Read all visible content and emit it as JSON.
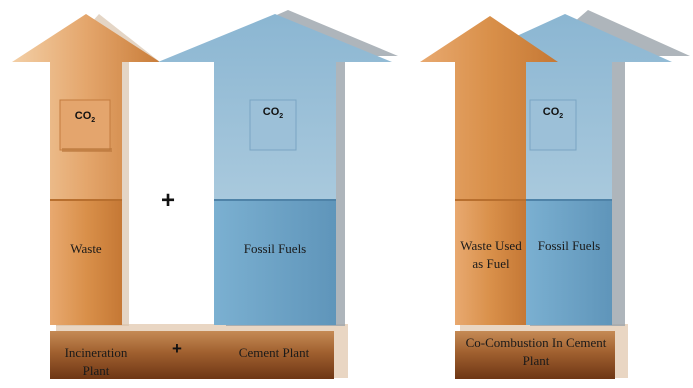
{
  "left_diagram": {
    "waste_label": "Waste",
    "fossil_label": "Fossil Fuels",
    "co2_main": "CO",
    "co2_sub": "2",
    "plus_between": "+",
    "base_left_label": "Incineration Plant",
    "base_plus": "+",
    "base_right_label": "Cement Plant"
  },
  "right_diagram": {
    "waste_label": "Waste Used as Fuel",
    "fossil_label": "Fossil Fuels",
    "co2_main": "CO",
    "co2_sub": "2",
    "base_label": "Co-Combustion In Cement Plant"
  },
  "colors": {
    "orange": "#d9904a",
    "orange_light": "#eab98a",
    "blue": "#6fa4c6",
    "blue_light": "#a9c9dd",
    "base_brown": "#8a4a22",
    "shadow": "#c9c9c9"
  }
}
